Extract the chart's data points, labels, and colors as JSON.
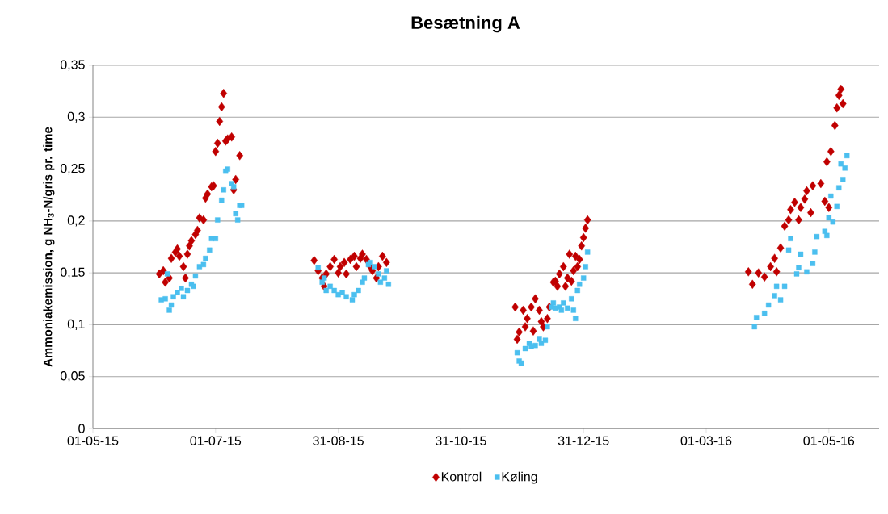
{
  "chart_data": {
    "type": "scatter",
    "title": "**Besætning A**",
    "ylabel": "Ammoniakemission, g NH$_{3}$-N/gris pr. time",
    "xlim": [
      "2015-05-01",
      "2016-05-26"
    ],
    "xticks": [
      {
        "value": "2015-05-01",
        "label": "01-05-15"
      },
      {
        "value": "2015-07-01",
        "label": "01-07-15"
      },
      {
        "value": "2015-08-31",
        "label": "31-08-15"
      },
      {
        "value": "2015-10-31",
        "label": "31-10-15"
      },
      {
        "value": "2015-12-31",
        "label": "31-12-15"
      },
      {
        "value": "2016-03-01",
        "label": "01-03-16"
      },
      {
        "value": "2016-05-01",
        "label": "01-05-16"
      }
    ],
    "ylim": [
      0,
      0.35
    ],
    "yticks": [
      0,
      {
        "value": 0.05,
        "label": "0,05"
      },
      {
        "value": 0.1,
        "label": "0,1"
      },
      {
        "value": 0.15,
        "label": "0,15"
      },
      {
        "value": 0.2,
        "label": "0,2"
      },
      {
        "value": 0.25,
        "label": "0,25"
      },
      {
        "value": 0.3,
        "label": "0,3"
      },
      {
        "value": 0.35,
        "label": "0,35"
      }
    ],
    "grid": "y",
    "legend": "bottom",
    "series": [
      {
        "name": "Kontrol",
        "color": "#c00000",
        "marker": "diamond",
        "x": [
          "2015-06-03",
          "2015-06-05",
          "2015-06-06",
          "2015-06-08",
          "2015-06-09",
          "2015-06-11",
          "2015-06-12",
          "2015-06-13",
          "2015-06-15",
          "2015-06-16",
          "2015-06-17",
          "2015-06-18",
          "2015-06-19",
          "2015-06-21",
          "2015-06-22",
          "2015-06-23",
          "2015-06-25",
          "2015-06-26",
          "2015-06-27",
          "2015-06-29",
          "2015-06-30",
          "2015-07-01",
          "2015-07-02",
          "2015-07-03",
          "2015-07-04",
          "2015-07-05",
          "2015-07-06",
          "2015-07-07",
          "2015-07-09",
          "2015-07-10",
          "2015-07-11",
          "2015-07-13",
          "2015-08-19",
          "2015-08-21",
          "2015-08-23",
          "2015-08-24",
          "2015-08-25",
          "2015-08-27",
          "2015-08-29",
          "2015-08-31",
          "2015-09-01",
          "2015-09-03",
          "2015-09-04",
          "2015-09-06",
          "2015-09-08",
          "2015-09-09",
          "2015-09-11",
          "2015-09-12",
          "2015-09-14",
          "2015-09-16",
          "2015-09-17",
          "2015-09-19",
          "2015-09-20",
          "2015-09-22",
          "2015-09-24",
          "2015-11-27",
          "2015-11-28",
          "2015-11-29",
          "2015-12-01",
          "2015-12-02",
          "2015-12-03",
          "2015-12-05",
          "2015-12-06",
          "2015-12-07",
          "2015-12-09",
          "2015-12-10",
          "2015-12-11",
          "2015-12-13",
          "2015-12-14",
          "2015-12-16",
          "2015-12-17",
          "2015-12-18",
          "2015-12-19",
          "2015-12-21",
          "2015-12-22",
          "2015-12-23",
          "2015-12-24",
          "2015-12-25",
          "2015-12-26",
          "2015-12-27",
          "2015-12-28",
          "2015-12-29",
          "2015-12-30",
          "2015-12-31",
          "2016-01-01",
          "2016-01-02",
          "2016-03-22",
          "2016-03-24",
          "2016-03-27",
          "2016-03-30",
          "2016-04-02",
          "2016-04-04",
          "2016-04-05",
          "2016-04-07",
          "2016-04-09",
          "2016-04-11",
          "2016-04-12",
          "2016-04-14",
          "2016-04-16",
          "2016-04-17",
          "2016-04-19",
          "2016-04-20",
          "2016-04-22",
          "2016-04-23",
          "2016-04-27",
          "2016-04-29",
          "2016-04-30",
          "2016-05-01",
          "2016-05-02",
          "2016-05-04",
          "2016-05-05",
          "2016-05-06",
          "2016-05-07",
          "2016-05-08"
        ],
        "values": [
          0.149,
          0.152,
          0.141,
          0.145,
          0.164,
          0.17,
          0.173,
          0.166,
          0.156,
          0.145,
          0.168,
          0.176,
          0.181,
          0.187,
          0.191,
          0.203,
          0.201,
          0.222,
          0.226,
          0.233,
          0.234,
          0.267,
          0.275,
          0.296,
          0.31,
          0.323,
          0.277,
          0.279,
          0.281,
          0.23,
          0.24,
          0.263,
          0.162,
          0.152,
          0.145,
          0.137,
          0.149,
          0.156,
          0.163,
          0.15,
          0.156,
          0.16,
          0.149,
          0.163,
          0.166,
          0.156,
          0.164,
          0.168,
          0.163,
          0.156,
          0.152,
          0.145,
          0.156,
          0.166,
          0.16,
          0.117,
          0.086,
          0.093,
          0.114,
          0.098,
          0.106,
          0.117,
          0.094,
          0.125,
          0.114,
          0.103,
          0.098,
          0.106,
          0.117,
          0.141,
          0.142,
          0.137,
          0.149,
          0.156,
          0.137,
          0.145,
          0.168,
          0.142,
          0.152,
          0.166,
          0.156,
          0.163,
          0.176,
          0.184,
          0.193,
          0.201,
          0.151,
          0.139,
          0.15,
          0.146,
          0.156,
          0.164,
          0.151,
          0.174,
          0.195,
          0.201,
          0.211,
          0.218,
          0.201,
          0.213,
          0.221,
          0.229,
          0.208,
          0.234,
          0.236,
          0.219,
          0.257,
          0.213,
          0.267,
          0.292,
          0.309,
          0.321,
          0.327,
          0.313
        ]
      },
      {
        "name": "Køling",
        "color": "#4bbfef",
        "marker": "square",
        "x": [
          "2015-06-04",
          "2015-06-06",
          "2015-06-07",
          "2015-06-08",
          "2015-06-09",
          "2015-06-10",
          "2015-06-12",
          "2015-06-14",
          "2015-06-15",
          "2015-06-17",
          "2015-06-19",
          "2015-06-20",
          "2015-06-21",
          "2015-06-23",
          "2015-06-25",
          "2015-06-26",
          "2015-06-28",
          "2015-06-29",
          "2015-07-01",
          "2015-07-02",
          "2015-07-04",
          "2015-07-05",
          "2015-07-06",
          "2015-07-07",
          "2015-07-09",
          "2015-07-10",
          "2015-07-11",
          "2015-07-12",
          "2015-07-13",
          "2015-07-14",
          "2015-08-21",
          "2015-08-23",
          "2015-08-24",
          "2015-08-25",
          "2015-08-27",
          "2015-08-29",
          "2015-08-31",
          "2015-09-02",
          "2015-09-04",
          "2015-09-07",
          "2015-09-08",
          "2015-09-10",
          "2015-09-12",
          "2015-09-13",
          "2015-09-15",
          "2015-09-16",
          "2015-09-18",
          "2015-09-20",
          "2015-09-21",
          "2015-09-23",
          "2015-09-24",
          "2015-09-25",
          "2015-11-28",
          "2015-11-29",
          "2015-11-30",
          "2015-12-02",
          "2015-12-04",
          "2015-12-05",
          "2015-12-07",
          "2015-12-09",
          "2015-12-10",
          "2015-12-12",
          "2015-12-13",
          "2015-12-15",
          "2015-12-16",
          "2015-12-17",
          "2015-12-19",
          "2015-12-20",
          "2015-12-21",
          "2015-12-23",
          "2015-12-25",
          "2015-12-26",
          "2015-12-27",
          "2015-12-28",
          "2015-12-29",
          "2015-12-31",
          "2016-01-01",
          "2016-01-02",
          "2016-03-25",
          "2016-03-26",
          "2016-03-30",
          "2016-04-01",
          "2016-04-04",
          "2016-04-05",
          "2016-04-07",
          "2016-04-09",
          "2016-04-11",
          "2016-04-12",
          "2016-04-15",
          "2016-04-16",
          "2016-04-17",
          "2016-04-20",
          "2016-04-23",
          "2016-04-24",
          "2016-04-25",
          "2016-04-29",
          "2016-04-30",
          "2016-05-01",
          "2016-05-02",
          "2016-05-03",
          "2016-05-05",
          "2016-05-06",
          "2016-05-07",
          "2016-05-08",
          "2016-05-09",
          "2016-05-10"
        ],
        "values": [
          0.124,
          0.125,
          0.149,
          0.114,
          0.119,
          0.127,
          0.131,
          0.135,
          0.127,
          0.133,
          0.139,
          0.137,
          0.147,
          0.156,
          0.158,
          0.164,
          0.172,
          0.183,
          0.183,
          0.201,
          0.22,
          0.23,
          0.248,
          0.25,
          0.236,
          0.233,
          0.207,
          0.201,
          0.215,
          0.215,
          0.155,
          0.141,
          0.145,
          0.133,
          0.137,
          0.133,
          0.129,
          0.131,
          0.127,
          0.124,
          0.129,
          0.133,
          0.141,
          0.145,
          0.158,
          0.16,
          0.156,
          0.149,
          0.141,
          0.145,
          0.152,
          0.139,
          0.073,
          0.065,
          0.063,
          0.077,
          0.082,
          0.079,
          0.08,
          0.086,
          0.082,
          0.085,
          0.098,
          0.117,
          0.121,
          0.116,
          0.117,
          0.114,
          0.121,
          0.116,
          0.125,
          0.114,
          0.106,
          0.133,
          0.139,
          0.145,
          0.156,
          0.17,
          0.098,
          0.107,
          0.111,
          0.119,
          0.128,
          0.137,
          0.124,
          0.137,
          0.172,
          0.183,
          0.149,
          0.155,
          0.168,
          0.151,
          0.159,
          0.17,
          0.185,
          0.19,
          0.186,
          0.203,
          0.224,
          0.199,
          0.214,
          0.232,
          0.255,
          0.24,
          0.251,
          0.263
        ]
      }
    ]
  }
}
